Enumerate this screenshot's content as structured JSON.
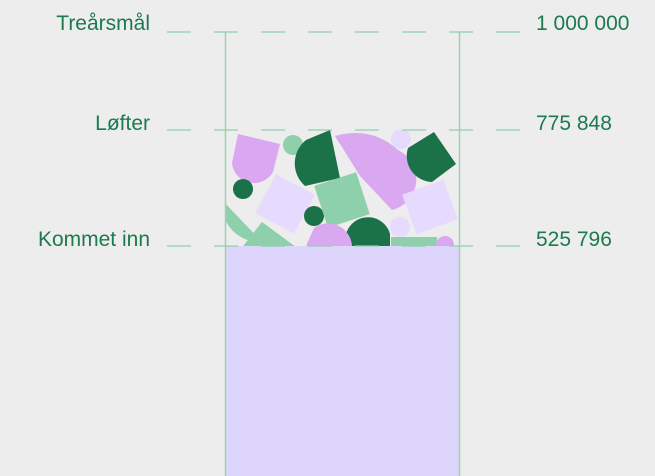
{
  "colors": {
    "text": "#1c7a4e",
    "dash": "#8fd0ad",
    "column_line": "#97d4b3",
    "fill": "#ddd5fb",
    "dark_green": "#1b7249",
    "mid_green": "#8ecfac",
    "pink": "#d9a8f0",
    "lavender": "#e6dbfe",
    "background": "#ededed"
  },
  "levels": {
    "goal": {
      "label": "Treårsmål",
      "value": "1 000 000",
      "amount": 1000000
    },
    "pledged": {
      "label": "Løfter",
      "value": "775 848",
      "amount": 775848
    },
    "collected": {
      "label": "Kommet inn",
      "value": "525 796",
      "amount": 525796
    }
  }
}
